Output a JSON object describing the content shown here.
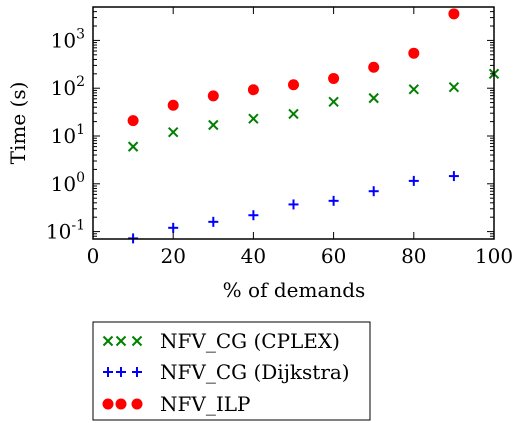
{
  "chart_data": {
    "type": "scatter",
    "xlabel": "% of demands",
    "ylabel": "Time (s)",
    "xlim": [
      0,
      100
    ],
    "ylim": [
      0.07,
      5000
    ],
    "y_scale": "log",
    "x_ticks": [
      "0",
      "20",
      "40",
      "60",
      "80",
      "100"
    ],
    "y_ticks": [
      {
        "value": 0.1,
        "base": "10",
        "exp": "-1"
      },
      {
        "value": 1,
        "base": "10",
        "exp": "0"
      },
      {
        "value": 10,
        "base": "10",
        "exp": "1"
      },
      {
        "value": 100,
        "base": "10",
        "exp": "2"
      },
      {
        "value": 1000,
        "base": "10",
        "exp": "3"
      }
    ],
    "grid": false,
    "legend_position": "below",
    "series": [
      {
        "name": "NFV_CG (CPLEX)",
        "marker": "x",
        "color": "#008000",
        "points": [
          {
            "x": 10,
            "y": 6
          },
          {
            "x": 20,
            "y": 12
          },
          {
            "x": 30,
            "y": 17
          },
          {
            "x": 40,
            "y": 23
          },
          {
            "x": 50,
            "y": 29
          },
          {
            "x": 60,
            "y": 52
          },
          {
            "x": 70,
            "y": 62
          },
          {
            "x": 80,
            "y": 95
          },
          {
            "x": 90,
            "y": 105
          },
          {
            "x": 100,
            "y": 200
          }
        ]
      },
      {
        "name": "NFV_CG (Dijkstra)",
        "marker": "+",
        "color": "#0000ff",
        "points": [
          {
            "x": 10,
            "y": 0.072
          },
          {
            "x": 20,
            "y": 0.12
          },
          {
            "x": 30,
            "y": 0.16
          },
          {
            "x": 40,
            "y": 0.22
          },
          {
            "x": 50,
            "y": 0.37
          },
          {
            "x": 60,
            "y": 0.44
          },
          {
            "x": 70,
            "y": 0.7
          },
          {
            "x": 80,
            "y": 1.15
          },
          {
            "x": 90,
            "y": 1.45
          }
        ]
      },
      {
        "name": "NFV_ILP",
        "marker": "o",
        "color": "#ff0000",
        "points": [
          {
            "x": 10,
            "y": 21
          },
          {
            "x": 20,
            "y": 44
          },
          {
            "x": 30,
            "y": 69
          },
          {
            "x": 40,
            "y": 93
          },
          {
            "x": 50,
            "y": 118
          },
          {
            "x": 60,
            "y": 160
          },
          {
            "x": 70,
            "y": 275
          },
          {
            "x": 80,
            "y": 540
          },
          {
            "x": 90,
            "y": 3600
          }
        ]
      }
    ]
  }
}
